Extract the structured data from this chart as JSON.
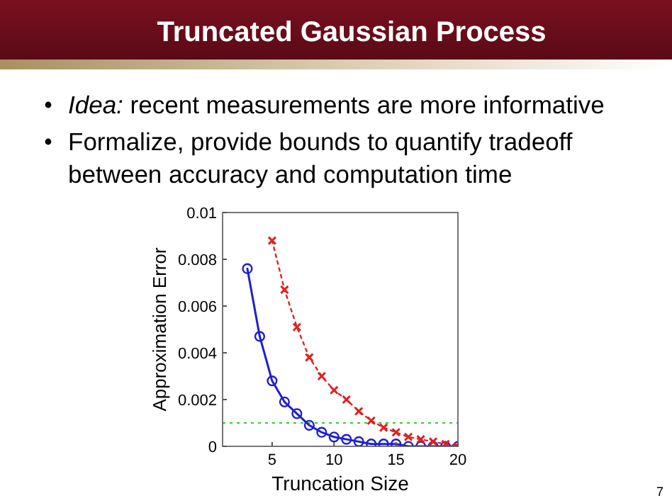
{
  "chart_data": {
    "type": "line",
    "title": "Truncated Gaussian Process",
    "xlabel": "Truncation Size",
    "ylabel": "Approximation Error",
    "annotations": [
      "Idea:  recent measurements are more informative",
      "Formalize, provide bounds to quantify tradeoff between accuracy and computation time",
      "7"
    ],
    "series": [
      {
        "color": "#1f1fd0",
        "marker": "circle",
        "line_style": "solid",
        "x": [
          3,
          4,
          5,
          6,
          7,
          8,
          9,
          10,
          11,
          12,
          13,
          14,
          15,
          16,
          17,
          18,
          19,
          20
        ],
        "values": [
          0.0076,
          0.0047,
          0.0028,
          0.0019,
          0.0014,
          0.0009,
          0.0006,
          0.0004,
          0.0003,
          0.0002,
          0.0001,
          0.0001,
          0.0001,
          0,
          0,
          0,
          0,
          0
        ]
      },
      {
        "color": "#e02020",
        "marker": "cross",
        "line_style": "dotted",
        "x": [
          5,
          6,
          7,
          8,
          9,
          10,
          11,
          12,
          13,
          14,
          15,
          16,
          17,
          18,
          19,
          20
        ],
        "values": [
          0.0088,
          0.0067,
          0.0051,
          0.0038,
          0.003,
          0.0024,
          0.002,
          0.0015,
          0.0011,
          0.0008,
          0.0006,
          0.0004,
          0.0003,
          0.0002,
          0.0001,
          0
        ]
      }
    ],
    "ref_lines": [
      {
        "axis": "y",
        "value": 0.001,
        "color": "#33cc33",
        "line_style": "dotted"
      }
    ],
    "xlim": [
      1,
      20
    ],
    "xticks": [
      5,
      10,
      15,
      20
    ],
    "ylim": [
      0,
      0.01
    ],
    "yticks": [
      0,
      0.002,
      0.004,
      0.006,
      0.008,
      0.01
    ],
    "grid": false
  }
}
